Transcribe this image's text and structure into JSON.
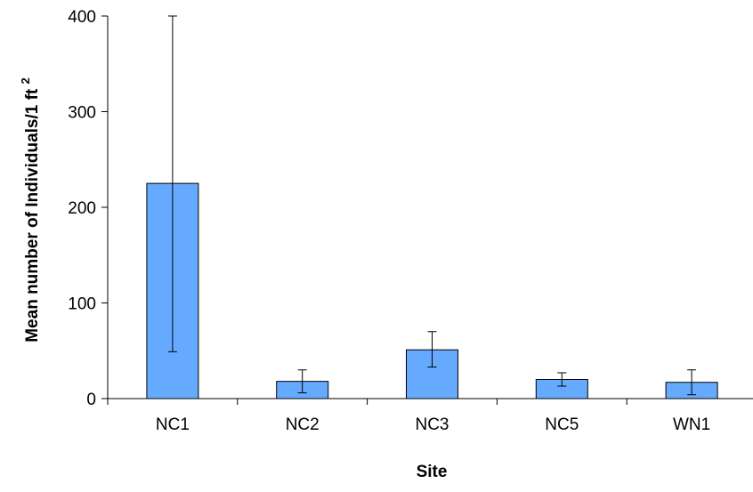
{
  "chart_data": {
    "type": "bar",
    "title": "",
    "xlabel": "Site",
    "ylabel": "Mean number of Individuals/1 ft",
    "ylabel_superscript": "2",
    "categories": [
      "NC1",
      "NC2",
      "NC3",
      "NC5",
      "WN1"
    ],
    "series": [
      {
        "values": [
          225,
          18,
          51,
          20,
          17
        ],
        "error_low": [
          49,
          6,
          33,
          13,
          4
        ],
        "error_high": [
          400,
          30,
          70,
          27,
          30
        ]
      }
    ],
    "ylim": [
      0,
      400
    ],
    "yticks": [
      0,
      100,
      200,
      300,
      400
    ],
    "grid": false,
    "legend": "none",
    "bar_color": "#66aaff",
    "bar_edge_color": "#000000"
  }
}
